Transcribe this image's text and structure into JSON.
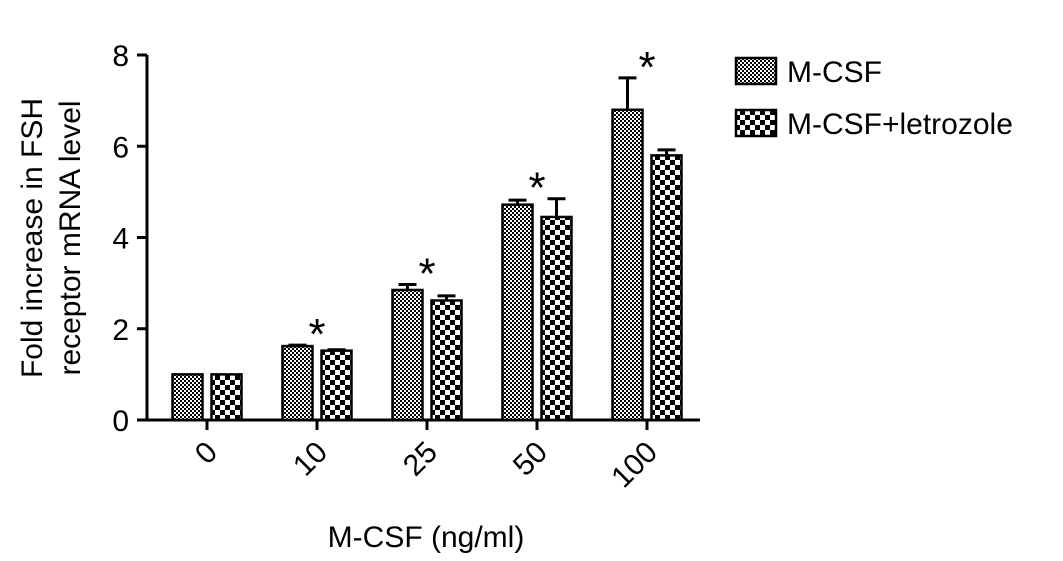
{
  "chart_data": {
    "type": "bar",
    "xlabel": "M-CSF (ng/ml)",
    "ylabel": [
      "Fold increase in FSH",
      "receptor mRNA level"
    ],
    "categories": [
      "0",
      "10",
      "25",
      "50",
      "100"
    ],
    "ylim": [
      0,
      8
    ],
    "yticks": [
      0,
      2,
      4,
      6,
      8
    ],
    "legend_position": "top-right",
    "series": [
      {
        "name": "M-CSF",
        "pattern": "fine-check",
        "values": [
          1.0,
          1.62,
          2.85,
          4.72,
          6.8
        ],
        "errors": [
          0,
          0.02,
          0.12,
          0.1,
          0.7
        ]
      },
      {
        "name": "M-CSF+letrozole",
        "pattern": "coarse-check",
        "values": [
          1.0,
          1.52,
          2.62,
          4.45,
          5.8
        ],
        "errors": [
          0,
          0.02,
          0.1,
          0.4,
          0.12
        ]
      }
    ],
    "annotations": [
      {
        "category": "10",
        "text": "*"
      },
      {
        "category": "25",
        "text": "*"
      },
      {
        "category": "50",
        "text": "*"
      },
      {
        "category": "100",
        "text": "*"
      }
    ]
  }
}
